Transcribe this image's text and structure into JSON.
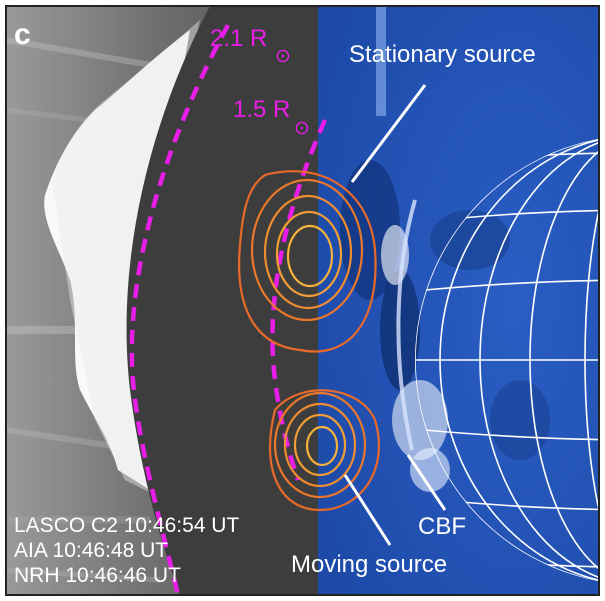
{
  "panel_label": "c",
  "radius_labels": {
    "outer": {
      "value": "2.1 R",
      "sun_symbol": "⊙"
    },
    "inner": {
      "value": "1.5 R",
      "sun_symbol": "⊙"
    }
  },
  "annotations": {
    "stationary_source": "Stationary source",
    "moving_source": "Moving source",
    "cbf": "CBF"
  },
  "timestamps": [
    "LASCO C2 10:46:54 UT",
    "AIA 10:46:48 UT",
    "NRH 10:46:46 UT"
  ],
  "colors": {
    "radius_dashes": "#e81ee8",
    "contour_outer": "#e86a2a",
    "contour_mid": "#f08c30",
    "contour_inner": "#f6b23a",
    "aia_background": "#1e4fb8",
    "occulter": "#3d3d3d",
    "text_white": "#ffffff"
  }
}
